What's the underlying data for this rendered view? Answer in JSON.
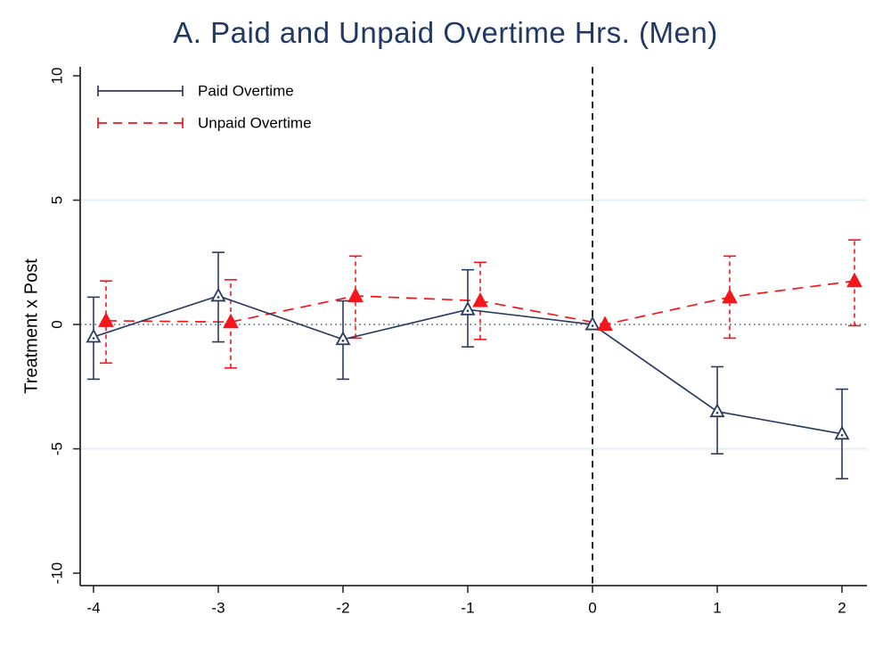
{
  "chart_data": {
    "type": "line",
    "title": "A. Paid and Unpaid Overtime Hrs. (Men)",
    "xlabel": "",
    "ylabel": "Treatment x Post",
    "x_ticks": [
      -4,
      -3,
      -2,
      -1,
      0,
      1,
      2
    ],
    "x_tick_labels": [
      "-4",
      "-3",
      "-2",
      "-1",
      "0",
      "1",
      "2"
    ],
    "y_ticks": [
      10,
      5,
      0,
      -5,
      -10
    ],
    "y_tick_labels": [
      "10",
      "5",
      "0",
      "-5",
      "-10"
    ],
    "xlim": [
      -4.107,
      2.2
    ],
    "ylim": [
      -10.5,
      10.36
    ],
    "grid_y": [
      5,
      -5
    ],
    "zero_line_y": 0,
    "vline_x": 0,
    "legend_position": "top-left",
    "legend_entries": [
      "Paid Overtime",
      "Unpaid Overtime"
    ],
    "series": [
      {
        "name": "Paid Overtime",
        "color": "#2b3c5f",
        "line_style": "solid",
        "marker": "hollow-triangle",
        "x_offset": 0,
        "points": [
          {
            "x": -4,
            "y": -0.5,
            "lo": -2.2,
            "hi": 1.1
          },
          {
            "x": -3,
            "y": 1.15,
            "lo": -0.7,
            "hi": 2.9
          },
          {
            "x": -2,
            "y": -0.6,
            "lo": -2.2,
            "hi": 0.95
          },
          {
            "x": -1,
            "y": 0.6,
            "lo": -0.9,
            "hi": 2.2
          },
          {
            "x": 0,
            "y": 0,
            "lo": null,
            "hi": null
          },
          {
            "x": 1,
            "y": -3.5,
            "lo": -5.2,
            "hi": -1.7
          },
          {
            "x": 2,
            "y": -4.4,
            "lo": -6.2,
            "hi": -2.6
          }
        ]
      },
      {
        "name": "Unpaid Overtime",
        "color": "#f6151b",
        "line_style": "dashed",
        "marker": "filled-triangle",
        "x_offset": 0.1,
        "points": [
          {
            "x": -4,
            "y": 0.15,
            "lo": -1.55,
            "hi": 1.75
          },
          {
            "x": -3,
            "y": 0.1,
            "lo": -1.75,
            "hi": 1.8
          },
          {
            "x": -2,
            "y": 1.15,
            "lo": -0.55,
            "hi": 2.75
          },
          {
            "x": -1,
            "y": 0.95,
            "lo": -0.6,
            "hi": 2.5
          },
          {
            "x": 0,
            "y": 0,
            "lo": null,
            "hi": null
          },
          {
            "x": 1,
            "y": 1.1,
            "lo": -0.55,
            "hi": 2.75
          },
          {
            "x": 2,
            "y": 1.75,
            "lo": -0.05,
            "hi": 3.4
          }
        ]
      }
    ],
    "colors": {
      "title": "#1f3864",
      "paid": "#2b3c5f",
      "unpaid": "#f6151b",
      "gridline": "#e2eff3",
      "zero_line": "#44506b",
      "vline": "#262626",
      "axis": "#2b2b2b",
      "tick_label": "#000000"
    }
  }
}
